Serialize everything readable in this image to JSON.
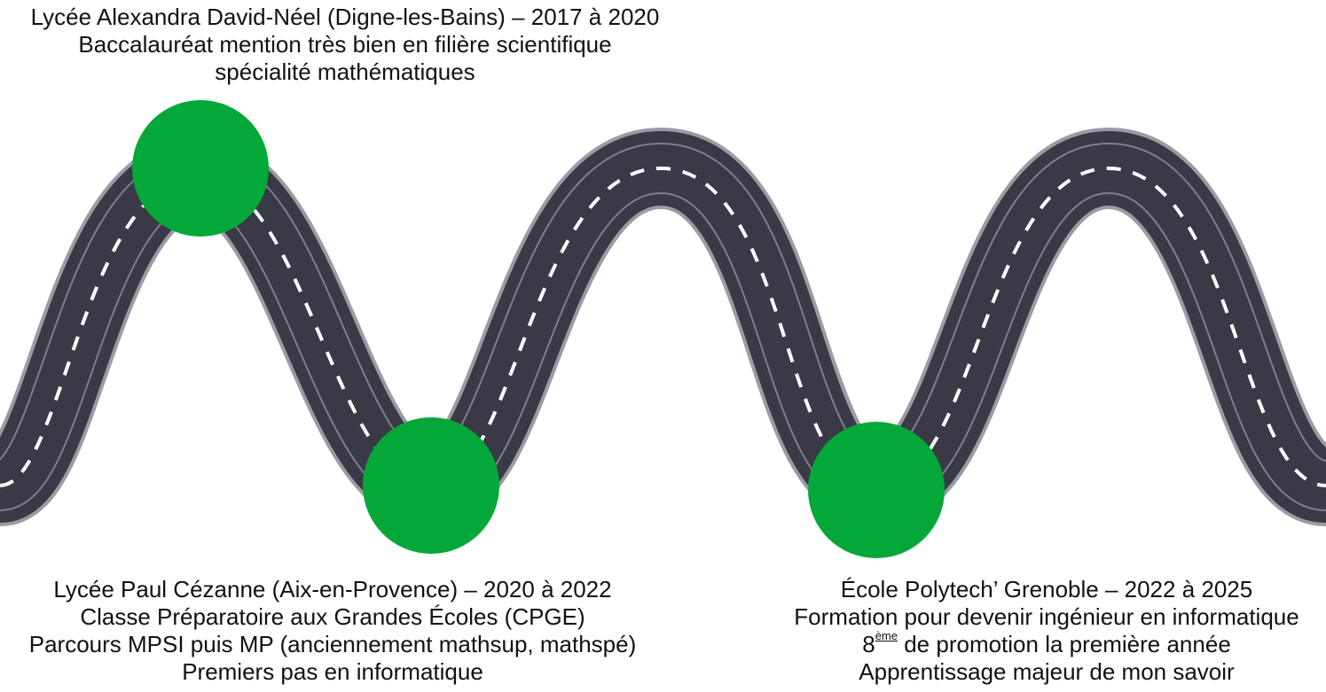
{
  "colors": {
    "road": "#393a45",
    "road_edge": "#9a9ca5",
    "lane_marking": "#ffffff",
    "milestone": "#04a838",
    "text": "#111111",
    "background": "#ffffff"
  },
  "milestones": [
    {
      "id": "lycee-alexandra-david-neel",
      "lines": [
        "Lycée Alexandra David-Néel (Digne-les-Bains) – 2017 à 2020",
        "Baccalauréat mention très bien en filière scientifique",
        "spécialité mathématiques"
      ]
    },
    {
      "id": "lycee-paul-cezanne",
      "lines": [
        "Lycée Paul Cézanne (Aix-en-Provence) – 2020 à 2022",
        "Classe Préparatoire aux Grandes Écoles (CPGE)",
        "Parcours MPSI puis MP (anciennement mathsup, mathspé)",
        "Premiers pas en informatique"
      ]
    },
    {
      "id": "ecole-polytech-grenoble",
      "lines": [
        "École Polytech’ Grenoble – 2022 à 2025",
        "Formation pour devenir ingénieur en informatique",
        "de promotion la première année",
        "Apprentissage majeur de mon savoir"
      ],
      "rank": "8",
      "rank_suffix": "ème"
    }
  ]
}
